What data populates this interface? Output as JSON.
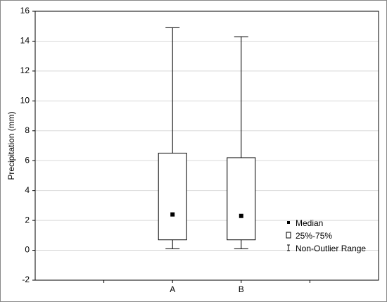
{
  "chart_data": {
    "type": "box",
    "ylabel": "Precipitation (mm)",
    "categories": [
      "A",
      "B"
    ],
    "min": [
      0.1,
      0.1
    ],
    "q1": [
      0.7,
      0.7
    ],
    "median": [
      2.4,
      2.3
    ],
    "q3": [
      6.5,
      6.2
    ],
    "max": [
      14.9,
      14.3
    ],
    "ylim": [
      -2,
      16
    ],
    "yticks": [
      -2,
      0,
      2,
      4,
      6,
      8,
      10,
      12,
      14,
      16
    ],
    "grid": true,
    "legend": [
      "Median",
      "25%-75%",
      "Non-Outlier Range"
    ],
    "legend_position": "right",
    "color": "#000000"
  }
}
